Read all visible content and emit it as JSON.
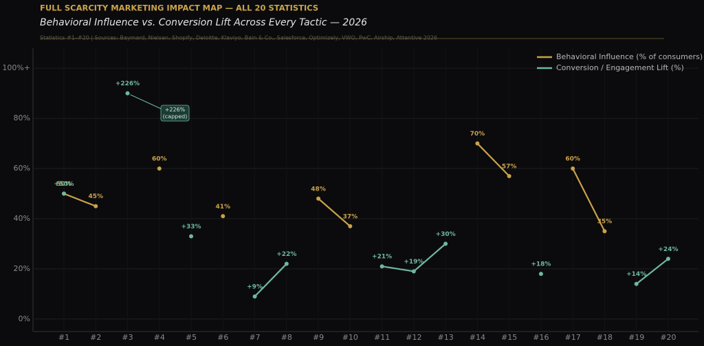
{
  "chart_data": {
    "type": "line",
    "title": "FULL SCARCITY MARKETING IMPACT MAP — ALL 20 STATISTICS",
    "subtitle": "Behavioral Influence vs. Conversion Lift Across Every Tactic — 2026",
    "source": "Statistics #1–#20  |  Sources: Baymard, Nielsen, Shopify, Deloitte, Klaviyo, Bain & Co., Salesforce, Optimizely, VWO, PwC, Airship, Attentive 2026",
    "categories": [
      "#1",
      "#2",
      "#3",
      "#4",
      "#5",
      "#6",
      "#7",
      "#8",
      "#9",
      "#10",
      "#11",
      "#12",
      "#13",
      "#14",
      "#15",
      "#16",
      "#17",
      "#18",
      "#19",
      "#20"
    ],
    "series": [
      {
        "name": "Behavioral Influence (% of consumers)",
        "color": "#c9a24a",
        "values": [
          50,
          45,
          null,
          60,
          null,
          41,
          null,
          null,
          48,
          37,
          null,
          null,
          null,
          70,
          57,
          null,
          60,
          35,
          null,
          null
        ],
        "value_labels": [
          "50%",
          "45%",
          null,
          "60%",
          null,
          "41%",
          null,
          null,
          "48%",
          "37%",
          null,
          null,
          null,
          "70%",
          "57%",
          null,
          "60%",
          "35%",
          null,
          null
        ]
      },
      {
        "name": "Conversion / Engagement Lift (%)",
        "color": "#6fb8a0",
        "values": [
          50,
          null,
          226,
          null,
          33,
          null,
          9,
          22,
          null,
          null,
          21,
          19,
          30,
          null,
          null,
          18,
          null,
          null,
          14,
          24
        ],
        "value_labels": [
          "+50%",
          null,
          "+226%",
          null,
          "+33%",
          null,
          "+9%",
          "+22%",
          null,
          null,
          "+21%",
          "+19%",
          "+30%",
          null,
          null,
          "+18%",
          null,
          null,
          "+14%",
          "+24%"
        ]
      }
    ],
    "annotations": [
      {
        "series": 1,
        "index": 2,
        "lines": [
          "+226%",
          "(capped)"
        ]
      }
    ],
    "clip_at": 90,
    "ylim": [
      -5,
      108
    ],
    "yticks": [
      {
        "value": 0,
        "label": "0%"
      },
      {
        "value": 20,
        "label": "20%"
      },
      {
        "value": 40,
        "label": "40%"
      },
      {
        "value": 60,
        "label": "60%"
      },
      {
        "value": 80,
        "label": "80%"
      },
      {
        "value": 100,
        "label": "100%+"
      }
    ],
    "grid": true,
    "legend": "upper-right"
  }
}
